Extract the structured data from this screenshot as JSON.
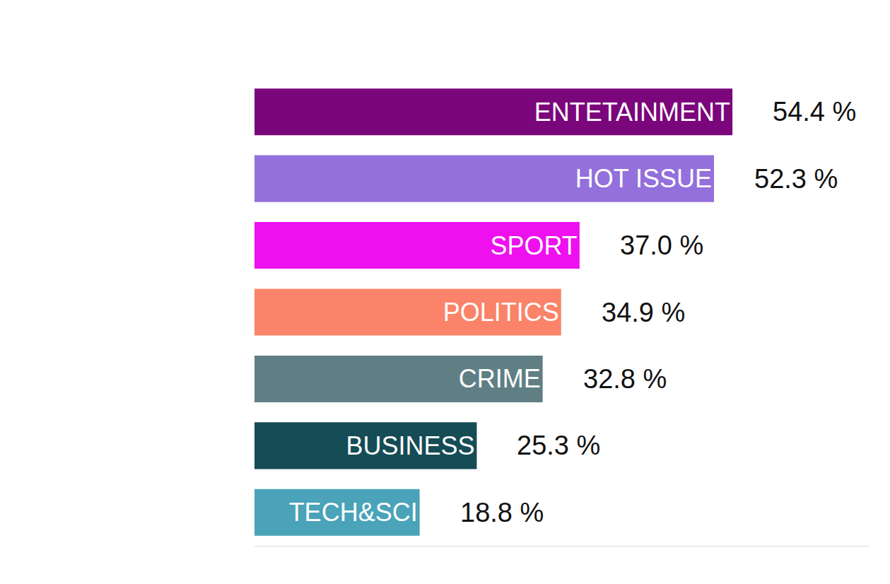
{
  "chart_data": {
    "type": "bar",
    "orientation": "horizontal",
    "categories": [
      "ENTETAINMENT",
      "HOT ISSUE",
      "SPORT",
      "POLITICS",
      "CRIME",
      "BUSINESS",
      "TECH&SCI"
    ],
    "values": [
      54.4,
      52.3,
      37.0,
      34.9,
      32.8,
      25.3,
      18.8
    ],
    "value_labels": [
      "54.4 %",
      "52.3 %",
      "37.0 %",
      "34.9 %",
      "32.8 %",
      "25.3 %",
      "18.8 %"
    ],
    "colors": [
      "#7b067b",
      "#9370db",
      "#ee10ee",
      "#fa8369",
      "#5f7f84",
      "#154c56",
      "#4aa3b8"
    ],
    "xlim": [
      0,
      70
    ],
    "data_labels": true,
    "tick_labels": false,
    "grid": false
  }
}
